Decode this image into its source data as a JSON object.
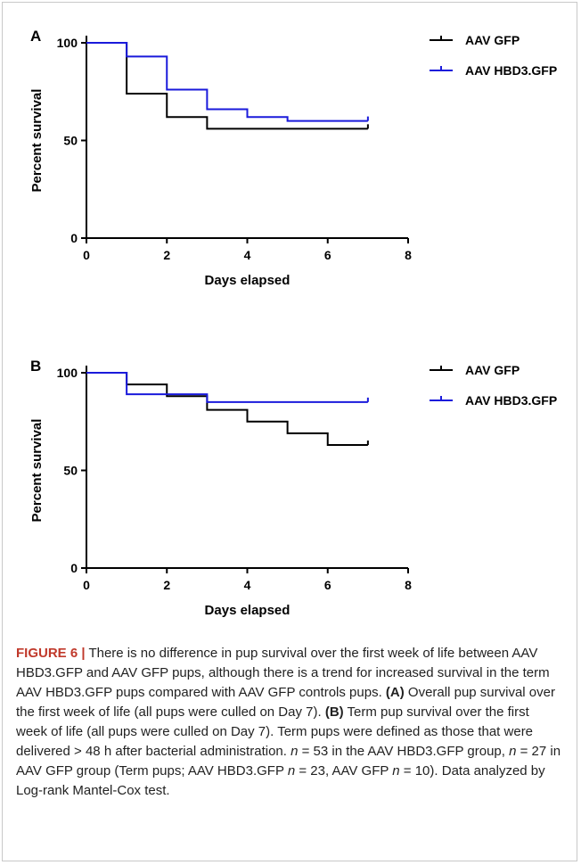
{
  "chart_data": [
    {
      "type": "line",
      "panel_label": "A",
      "xlabel": "Days elapsed",
      "ylabel": "Percent survival",
      "xlim": [
        0,
        8
      ],
      "ylim": [
        0,
        100
      ],
      "xticks": [
        "0",
        "2",
        "4",
        "6",
        "8"
      ],
      "yticks": [
        "0",
        "50",
        "100"
      ],
      "legend_position": "top-right",
      "series": [
        {
          "name": "AAV GFP",
          "color": "#000000",
          "step": true,
          "x": [
            0,
            1,
            2,
            3,
            7
          ],
          "y": [
            100,
            74,
            62,
            56,
            56
          ]
        },
        {
          "name": "AAV HBD3.GFP",
          "color": "#1a1adb",
          "step": true,
          "x": [
            0,
            1,
            2,
            3,
            4,
            5,
            7
          ],
          "y": [
            100,
            93,
            76,
            66,
            62,
            60,
            60
          ]
        }
      ]
    },
    {
      "type": "line",
      "panel_label": "B",
      "xlabel": "Days elapsed",
      "ylabel": "Percent survival",
      "xlim": [
        0,
        8
      ],
      "ylim": [
        0,
        100
      ],
      "xticks": [
        "0",
        "2",
        "4",
        "6",
        "8"
      ],
      "yticks": [
        "0",
        "50",
        "100"
      ],
      "legend_position": "top-right",
      "series": [
        {
          "name": "AAV GFP",
          "color": "#000000",
          "step": true,
          "x": [
            0,
            1,
            2,
            3,
            4,
            5,
            6,
            7
          ],
          "y": [
            100,
            94,
            88,
            81,
            75,
            69,
            63,
            63
          ]
        },
        {
          "name": "AAV HBD3.GFP",
          "color": "#1a1adb",
          "step": true,
          "x": [
            0,
            1,
            3,
            7
          ],
          "y": [
            100,
            89,
            85,
            85
          ]
        }
      ]
    }
  ],
  "caption": {
    "figure_label": "FIGURE 6 |",
    "intro": " There is no difference in pup survival over the first week of life between AAV HBD3.GFP and AAV GFP pups, although there is a trend for increased survival in the term AAV HBD3.GFP pups compared with AAV GFP controls pups. ",
    "a_label": "(A)",
    "a_text": " Overall pup survival over the first week of life (all pups were culled on Day 7). ",
    "b_label": "(B)",
    "b_text": " Term pup survival over the first week of life (all pups were culled on Day 7). Term pups were defined as those that were delivered > 48 h after bacterial administration. ",
    "n_var_1": "n",
    "n_text_1": " = 53 in the AAV HBD3.GFP group, ",
    "n_var_2": "n",
    "n_text_2": " = 27 in AAV GFP group (Term pups; AAV HBD3.GFP ",
    "n_var_3": "n",
    "n_text_3": " = 23, AAV GFP ",
    "n_var_4": "n",
    "n_text_4": " = 10). Data analyzed by Log-rank Mantel-Cox test."
  }
}
